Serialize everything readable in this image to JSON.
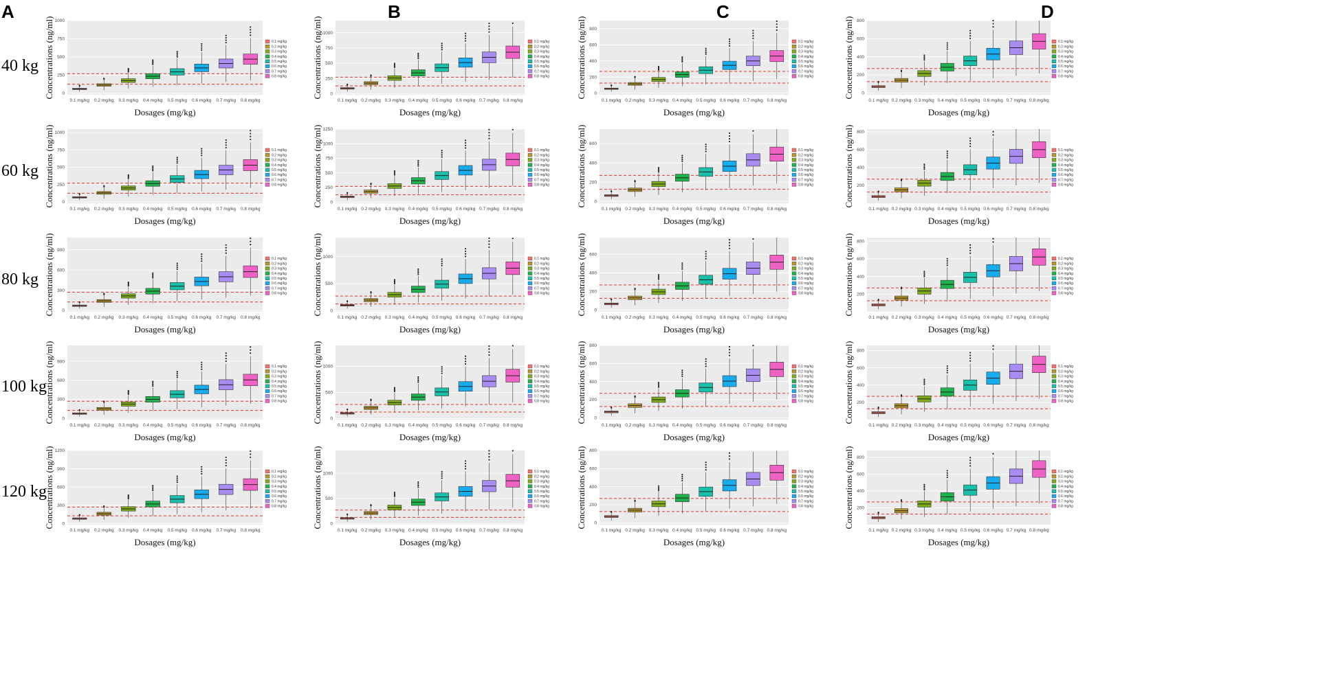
{
  "panel_letters": [
    "A",
    "B",
    "C",
    "D"
  ],
  "weights": [
    "40 kg",
    "60 kg",
    "80 kg",
    "100 kg",
    "120 kg"
  ],
  "axis": {
    "xlabel": "Dosages (mg/kg)",
    "ylabel": "Concentrations (ng/ml)"
  },
  "dose_levels": [
    "0.1 mg/kg",
    "0.2 mg/kg",
    "0.3 mg/kg",
    "0.4 mg/kg",
    "0.5 mg/kg",
    "0.6 mg/kg",
    "0.7 mg/kg",
    "0.8 mg/kg"
  ],
  "colors": {
    "series": [
      "#f0756d",
      "#b8962c",
      "#7fad1a",
      "#1eb34c",
      "#19bfa9",
      "#17aced",
      "#a98cf2",
      "#f061c5"
    ],
    "plot_bg": "#ebebeb",
    "grid": "#ffffff",
    "threshold": "#e8322b",
    "median": "#222222"
  },
  "chart_data": {
    "type": "boxplot",
    "description_note": "4 columns (A-D) x 5 body weights (40-120 kg); each subplot shows simulated concentration distributions per dose with two dashed thresholds",
    "thresholds": [
      125,
      270
    ],
    "legend_labels": [
      "0.1 mg/kg",
      "0.2 mg/kg",
      "0.3 mg/kg",
      "0.4 mg/kg",
      "0.5 mg/kg",
      "0.6 mg/kg",
      "0.7 mg/kg",
      "0.8 mg/kg"
    ],
    "columns": [
      {
        "letter": "A",
        "rows": [
          {
            "weight": "40 kg",
            "yticks": [
              0,
              250,
              500,
              750,
              1000
            ],
            "ylim": [
              -20,
              1000
            ],
            "medians": [
              60,
              115,
              175,
              235,
              295,
              350,
              410,
              470
            ]
          },
          {
            "weight": "60 kg",
            "yticks": [
              0,
              250,
              500,
              750,
              1000
            ],
            "ylim": [
              -20,
              1050
            ],
            "medians": [
              65,
              130,
              200,
              265,
              330,
              395,
              460,
              530
            ]
          },
          {
            "weight": "80 kg",
            "yticks": [
              0,
              300,
              600,
              900
            ],
            "ylim": [
              -20,
              1080
            ],
            "medians": [
              70,
              140,
              215,
              285,
              360,
              430,
              500,
              575
            ]
          },
          {
            "weight": "100 kg",
            "yticks": [
              0,
              300,
              600,
              900
            ],
            "ylim": [
              -20,
              1150
            ],
            "medians": [
              75,
              150,
              225,
              300,
              380,
              455,
              530,
              605
            ]
          },
          {
            "weight": "120 kg",
            "yticks": [
              0,
              300,
              600,
              900,
              1200
            ],
            "ylim": [
              -20,
              1200
            ],
            "medians": [
              80,
              160,
              240,
              320,
              400,
              480,
              560,
              640
            ]
          }
        ]
      },
      {
        "letter": "B",
        "rows": [
          {
            "weight": "40 kg",
            "yticks": [
              0,
              250,
              500,
              750,
              1000
            ],
            "ylim": [
              -20,
              1200
            ],
            "medians": [
              85,
              170,
              255,
              340,
              425,
              510,
              595,
              680
            ]
          },
          {
            "weight": "60 kg",
            "yticks": [
              0,
              250,
              500,
              750,
              1000,
              1250
            ],
            "ylim": [
              -20,
              1250
            ],
            "medians": [
              90,
              180,
              275,
              365,
              455,
              545,
              640,
              730
            ]
          },
          {
            "weight": "80 kg",
            "yticks": [
              0,
              500,
              1000
            ],
            "ylim": [
              -20,
              1350
            ],
            "medians": [
              100,
              195,
              295,
              395,
              490,
              590,
              690,
              785
            ]
          },
          {
            "weight": "100 kg",
            "yticks": [
              0,
              500,
              1000
            ],
            "ylim": [
              -20,
              1400
            ],
            "medians": [
              100,
              205,
              305,
              410,
              510,
              615,
              715,
              820
            ]
          },
          {
            "weight": "120 kg",
            "yticks": [
              0,
              500,
              1000
            ],
            "ylim": [
              -20,
              1450
            ],
            "medians": [
              105,
              210,
              320,
              425,
              530,
              640,
              745,
              850
            ]
          }
        ]
      },
      {
        "letter": "C",
        "rows": [
          {
            "weight": "40 kg",
            "yticks": [
              0,
              200,
              400,
              600,
              800
            ],
            "ylim": [
              -20,
              900
            ],
            "medians": [
              55,
              115,
              170,
              230,
              285,
              345,
              400,
              460
            ]
          },
          {
            "weight": "60 kg",
            "yticks": [
              0,
              200,
              400,
              600
            ],
            "ylim": [
              -20,
              750
            ],
            "medians": [
              60,
              120,
              180,
              245,
              305,
              365,
              430,
              490
            ]
          },
          {
            "weight": "80 kg",
            "yticks": [
              0,
              200,
              400,
              600
            ],
            "ylim": [
              -20,
              780
            ],
            "medians": [
              65,
              130,
              195,
              260,
              325,
              390,
              450,
              515
            ]
          },
          {
            "weight": "100 kg",
            "yticks": [
              0,
              200,
              400,
              600,
              800
            ],
            "ylim": [
              -20,
              800
            ],
            "medians": [
              65,
              135,
              200,
              270,
              335,
              405,
              470,
              535
            ]
          },
          {
            "weight": "120 kg",
            "yticks": [
              0,
              200,
              400,
              600,
              800
            ],
            "ylim": [
              -20,
              800
            ],
            "medians": [
              70,
              140,
              210,
              275,
              345,
              415,
              485,
              555
            ]
          }
        ]
      },
      {
        "letter": "D",
        "rows": [
          {
            "weight": "40 kg",
            "yticks": [
              0,
              200,
              400,
              600,
              800
            ],
            "ylim": [
              -20,
              800
            ],
            "medians": [
              70,
              140,
              215,
              285,
              355,
              430,
              500,
              570
            ]
          },
          {
            "weight": "60 kg",
            "yticks": [
              200,
              400,
              600,
              800
            ],
            "ylim": [
              0,
              830
            ],
            "medians": [
              75,
              150,
              225,
              300,
              375,
              450,
              525,
              600
            ]
          },
          {
            "weight": "80 kg",
            "yticks": [
              200,
              400,
              600,
              800
            ],
            "ylim": [
              0,
              840
            ],
            "medians": [
              78,
              155,
              235,
              310,
              390,
              465,
              545,
              620
            ]
          },
          {
            "weight": "100 kg",
            "yticks": [
              200,
              400,
              600,
              800
            ],
            "ylim": [
              0,
              860
            ],
            "medians": [
              80,
              160,
              240,
              320,
              400,
              480,
              560,
              640
            ]
          },
          {
            "weight": "120 kg",
            "yticks": [
              200,
              400,
              600,
              800
            ],
            "ylim": [
              0,
              880
            ],
            "medians": [
              82,
              165,
              245,
              330,
              410,
              495,
              575,
              660
            ]
          }
        ]
      }
    ]
  }
}
